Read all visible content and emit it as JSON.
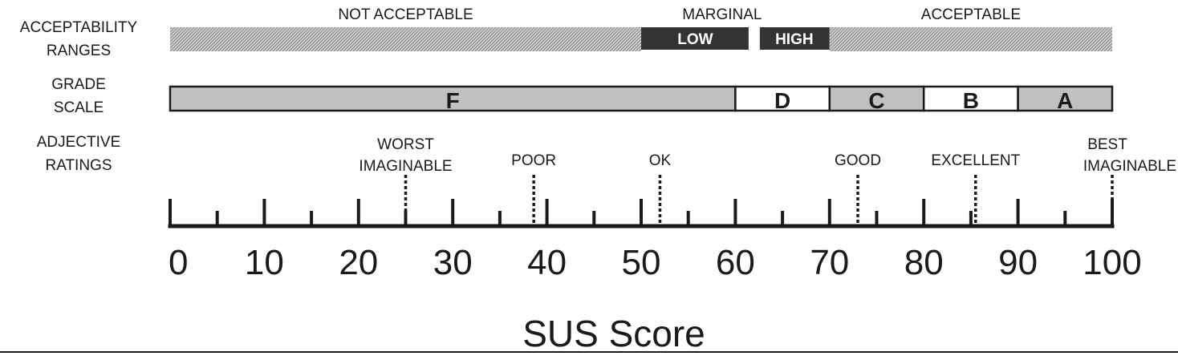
{
  "row_labels": {
    "acceptability": [
      "ACCEPTABILITY",
      "RANGES"
    ],
    "grade": [
      "GRADE",
      "SCALE"
    ],
    "adjective": [
      "ADJECTIVE",
      "RATINGS"
    ]
  },
  "acceptability_ranges": [
    {
      "label": "NOT  ACCEPTABLE",
      "start": 0,
      "end": 50,
      "fill": "hatch"
    },
    {
      "label": "LOW",
      "start": 50,
      "end": 62,
      "fill": "dark",
      "group": "MARGINAL"
    },
    {
      "label": "HIGH",
      "start": 62,
      "end": 70,
      "fill": "dark",
      "group": "MARGINAL"
    },
    {
      "label": "ACCEPTABLE",
      "start": 70,
      "end": 100,
      "fill": "hatch"
    }
  ],
  "marginal_label": "MARGINAL",
  "grades": [
    {
      "label": "F",
      "start": 0,
      "end": 60,
      "fill": "#c0c0c0"
    },
    {
      "label": "D",
      "start": 60,
      "end": 70,
      "fill": "#ffffff"
    },
    {
      "label": "C",
      "start": 70,
      "end": 80,
      "fill": "#c0c0c0"
    },
    {
      "label": "B",
      "start": 80,
      "end": 90,
      "fill": "#ffffff"
    },
    {
      "label": "A",
      "start": 90,
      "end": 100,
      "fill": "#c0c0c0"
    }
  ],
  "adjectives": [
    {
      "lines": [
        "WORST",
        "IMAGINABLE"
      ],
      "score": 25
    },
    {
      "lines": [
        "POOR"
      ],
      "score": 38.6
    },
    {
      "lines": [
        "OK"
      ],
      "score": 52
    },
    {
      "lines": [
        "GOOD"
      ],
      "score": 73
    },
    {
      "lines": [
        "EXCELLENT"
      ],
      "score": 85.5
    },
    {
      "lines": [
        "BEST",
        "IMAGINABLE"
      ],
      "score": 100
    }
  ],
  "axis": {
    "min": 0,
    "max": 100,
    "major_ticks": [
      0,
      10,
      20,
      30,
      40,
      50,
      60,
      70,
      80,
      90,
      100
    ],
    "minor_ticks": [
      5,
      15,
      25,
      35,
      45,
      55,
      65,
      75,
      85,
      95
    ],
    "tick_labels": [
      "0",
      "10",
      "20",
      "30",
      "40",
      "50",
      "60",
      "70",
      "80",
      "90",
      "100"
    ],
    "title": "SUS Score"
  },
  "colors": {
    "ink": "#1a1a1a",
    "dark_band": "#333333",
    "grade_gray": "#c0c0c0",
    "hatch": "#9a9a9a"
  }
}
